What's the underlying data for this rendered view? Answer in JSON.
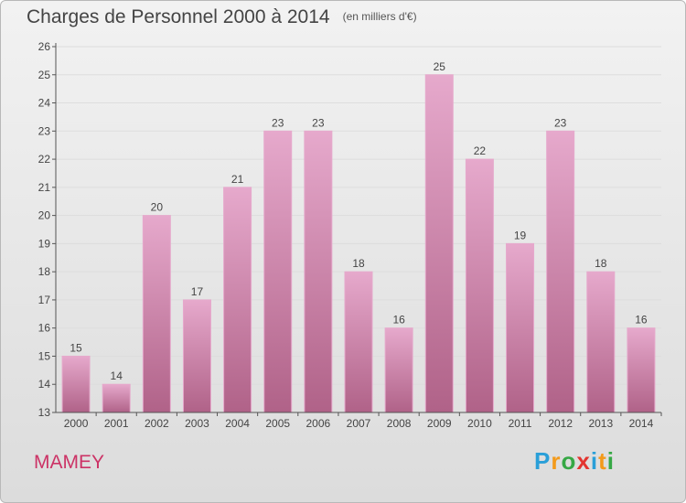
{
  "title": "Charges de Personnel 2000 à 2014",
  "unit": "(en milliers d'€)",
  "place": "MAMEY",
  "logo": {
    "letters": [
      "P",
      "r",
      "o",
      "x",
      "i",
      "t",
      "i"
    ],
    "colors": [
      "#2a9fd8",
      "#f39a1a",
      "#36a845",
      "#e3342f",
      "#2a9fd8",
      "#f39a1a",
      "#36a845"
    ]
  },
  "colors": {
    "bar": "#cc6699",
    "bar_light": "#e6a9cc",
    "bar_dark": "#b06288",
    "axis": "#555555",
    "grid": "#dddddd"
  },
  "chart_data": {
    "type": "bar",
    "categories": [
      "2000",
      "2001",
      "2002",
      "2003",
      "2004",
      "2005",
      "2006",
      "2007",
      "2008",
      "2009",
      "2010",
      "2011",
      "2012",
      "2013",
      "2014"
    ],
    "values": [
      15,
      14,
      20,
      17,
      21,
      23,
      23,
      18,
      16,
      25,
      22,
      19,
      23,
      18,
      16
    ],
    "ylim": [
      13,
      26
    ],
    "yticks": [
      13,
      14,
      15,
      16,
      17,
      18,
      19,
      20,
      21,
      22,
      23,
      24,
      25,
      26
    ],
    "grid": true,
    "legend": "none"
  }
}
